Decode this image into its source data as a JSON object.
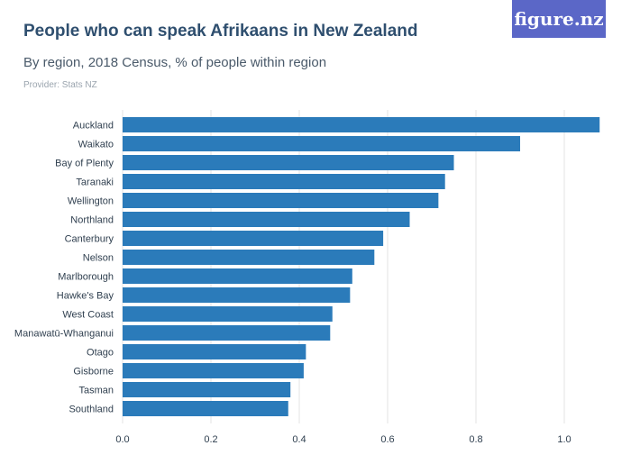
{
  "header": {
    "title": "People who can speak Afrikaans in New Zealand",
    "subtitle": "By region, 2018 Census, % of people within region",
    "provider": "Provider: Stats NZ",
    "logo_text": "figure.nz"
  },
  "colors": {
    "bar": "#2b7bba",
    "grid": "#e3e3e3",
    "logo_bg": "#5b67c7"
  },
  "chart_data": {
    "type": "bar",
    "orientation": "horizontal",
    "title": "People who can speak Afrikaans in New Zealand",
    "subtitle": "By region, 2018 Census, % of people within region",
    "categories": [
      "Auckland",
      "Waikato",
      "Bay of Plenty",
      "Taranaki",
      "Wellington",
      "Northland",
      "Canterbury",
      "Nelson",
      "Marlborough",
      "Hawke's Bay",
      "West Coast",
      "Manawatū-Whanganui",
      "Otago",
      "Gisborne",
      "Tasman",
      "Southland"
    ],
    "values": [
      1.08,
      0.9,
      0.75,
      0.73,
      0.715,
      0.65,
      0.59,
      0.57,
      0.52,
      0.515,
      0.475,
      0.47,
      0.415,
      0.41,
      0.38,
      0.375
    ],
    "xlim": [
      0,
      1.1
    ],
    "xticks": [
      0,
      0.2,
      0.4,
      0.6,
      0.8,
      1.0
    ],
    "xtick_labels": [
      "0.0",
      "0.2",
      "0.4",
      "0.6",
      "0.8",
      "1.0"
    ],
    "grid": true,
    "legend": "none"
  }
}
